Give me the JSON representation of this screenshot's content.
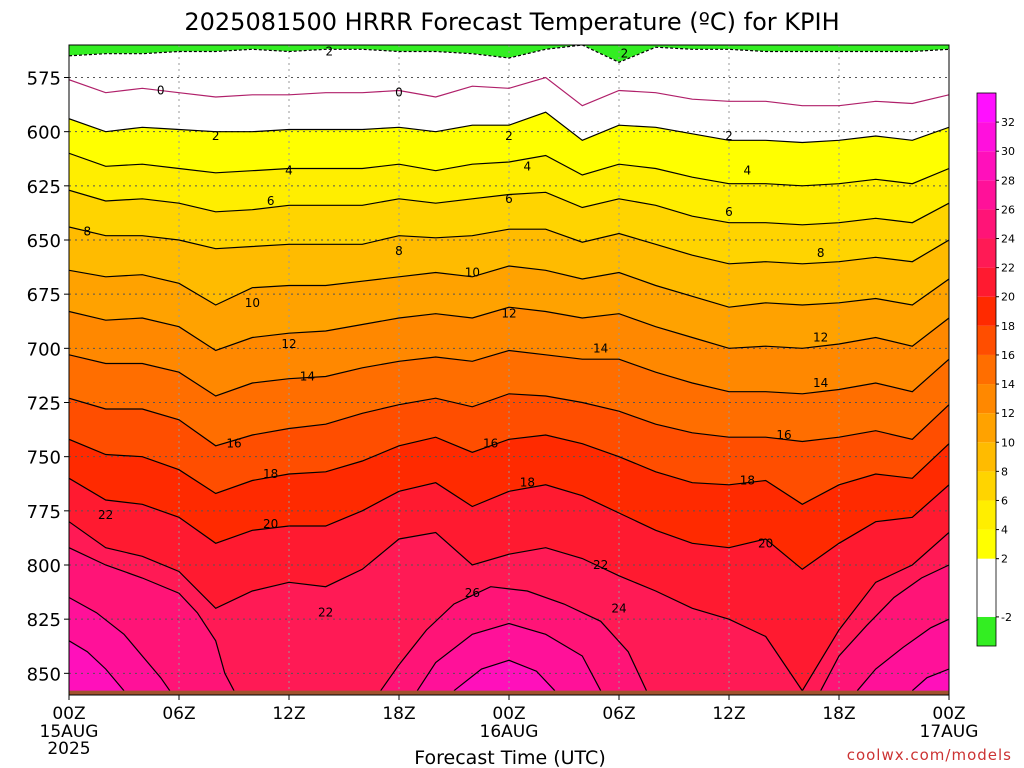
{
  "chart_data": {
    "type": "heatmap",
    "title": "2025081500 HRRR Forecast Temperature (ºC) for KPIH",
    "xlabel": "Forecast Time (UTC)",
    "ylabel": "",
    "credit": "coolwx.com/models",
    "x_hours": [
      0,
      48
    ],
    "x_ticks": [
      {
        "hour": 0,
        "label": "00Z",
        "date": "15AUG",
        "year": "2025"
      },
      {
        "hour": 6,
        "label": "06Z"
      },
      {
        "hour": 12,
        "label": "12Z"
      },
      {
        "hour": 18,
        "label": "18Z"
      },
      {
        "hour": 24,
        "label": "00Z",
        "date": "16AUG"
      },
      {
        "hour": 30,
        "label": "06Z"
      },
      {
        "hour": 36,
        "label": "12Z"
      },
      {
        "hour": 42,
        "label": "18Z"
      },
      {
        "hour": 48,
        "label": "00Z",
        "date": "17AUG"
      }
    ],
    "y_ticks": [
      575,
      600,
      625,
      650,
      675,
      700,
      725,
      750,
      775,
      800,
      825,
      850
    ],
    "y_range": [
      560,
      860
    ],
    "y_reversed": true,
    "surface_pressure_hpa": 858,
    "colorbar": {
      "ticks": [
        -2,
        2,
        4,
        6,
        8,
        10,
        12,
        14,
        16,
        18,
        20,
        22,
        24,
        26,
        28,
        30,
        32
      ],
      "bins": [
        {
          "lo": -4,
          "hi": -2,
          "color": "#33ee22"
        },
        {
          "lo": -2,
          "hi": 2,
          "color": "#ffffff"
        },
        {
          "lo": 2,
          "hi": 4,
          "color": "#ffff00"
        },
        {
          "lo": 4,
          "hi": 6,
          "color": "#ffee00"
        },
        {
          "lo": 6,
          "hi": 8,
          "color": "#ffd400"
        },
        {
          "lo": 8,
          "hi": 10,
          "color": "#ffbb00"
        },
        {
          "lo": 10,
          "hi": 12,
          "color": "#ffa200"
        },
        {
          "lo": 12,
          "hi": 14,
          "color": "#ff8800"
        },
        {
          "lo": 14,
          "hi": 16,
          "color": "#ff6e00"
        },
        {
          "lo": 16,
          "hi": 18,
          "color": "#ff4e00"
        },
        {
          "lo": 18,
          "hi": 20,
          "color": "#ff2a00"
        },
        {
          "lo": 20,
          "hi": 22,
          "color": "#ff1a30"
        },
        {
          "lo": 22,
          "hi": 24,
          "color": "#ff1a55"
        },
        {
          "lo": 24,
          "hi": 26,
          "color": "#ff1477"
        },
        {
          "lo": 26,
          "hi": 28,
          "color": "#ff1199"
        },
        {
          "lo": 28,
          "hi": 30,
          "color": "#ff10bb"
        },
        {
          "lo": 30,
          "hi": 32,
          "color": "#ff10dd"
        },
        {
          "lo": 32,
          "hi": 34,
          "color": "#ff10ff"
        }
      ]
    },
    "isotherms": [
      {
        "temp": -2,
        "style": "dashed",
        "p": [
          565,
          564,
          564,
          563,
          563,
          562,
          563,
          562,
          562,
          563,
          563,
          564,
          566,
          562,
          560,
          568,
          561,
          562,
          562,
          563,
          563,
          563,
          563,
          563,
          562
        ]
      },
      {
        "temp": 0,
        "style": "magenta",
        "p": [
          576,
          582,
          580,
          582,
          584,
          583,
          583,
          582,
          582,
          581,
          584,
          579,
          580,
          575,
          588,
          581,
          582,
          585,
          586,
          586,
          588,
          588,
          586,
          587,
          583
        ]
      },
      {
        "temp": 2,
        "style": "solid",
        "p": [
          594,
          600,
          598,
          599,
          600,
          600,
          599,
          599,
          599,
          598,
          600,
          597,
          597,
          591,
          604,
          597,
          598,
          601,
          604,
          604,
          605,
          604,
          602,
          604,
          598
        ]
      },
      {
        "temp": 4,
        "style": "solid",
        "p": [
          610,
          616,
          615,
          617,
          619,
          618,
          617,
          617,
          617,
          615,
          618,
          615,
          614,
          611,
          620,
          615,
          617,
          621,
          624,
          624,
          625,
          624,
          622,
          624,
          617
        ]
      },
      {
        "temp": 6,
        "style": "solid",
        "p": [
          627,
          632,
          631,
          633,
          637,
          636,
          634,
          634,
          634,
          631,
          633,
          631,
          629,
          628,
          635,
          631,
          634,
          639,
          642,
          642,
          643,
          642,
          640,
          642,
          633
        ]
      },
      {
        "temp": 8,
        "style": "solid",
        "p": [
          644,
          648,
          648,
          650,
          654,
          653,
          652,
          652,
          652,
          648,
          649,
          648,
          645,
          645,
          651,
          647,
          652,
          657,
          661,
          660,
          661,
          660,
          658,
          660,
          650
        ]
      },
      {
        "temp": 10,
        "style": "solid",
        "p": [
          664,
          667,
          666,
          670,
          680,
          672,
          671,
          671,
          669,
          667,
          665,
          667,
          662,
          664,
          668,
          665,
          671,
          676,
          681,
          679,
          680,
          679,
          677,
          680,
          668
        ]
      },
      {
        "temp": 12,
        "style": "solid",
        "p": [
          683,
          687,
          686,
          690,
          701,
          695,
          693,
          692,
          689,
          686,
          684,
          686,
          681,
          683,
          686,
          684,
          690,
          695,
          700,
          699,
          700,
          698,
          695,
          699,
          686
        ]
      },
      {
        "temp": 14,
        "style": "solid",
        "p": [
          703,
          707,
          707,
          711,
          722,
          716,
          714,
          713,
          709,
          706,
          704,
          706,
          701,
          703,
          705,
          705,
          711,
          716,
          720,
          720,
          721,
          719,
          716,
          720,
          705
        ]
      },
      {
        "temp": 16,
        "style": "solid",
        "p": [
          723,
          728,
          728,
          733,
          745,
          740,
          737,
          735,
          730,
          726,
          723,
          727,
          721,
          722,
          725,
          729,
          735,
          739,
          741,
          741,
          743,
          741,
          738,
          742,
          726
        ]
      },
      {
        "temp": 18,
        "style": "solid",
        "p": [
          742,
          749,
          750,
          756,
          767,
          761,
          758,
          757,
          752,
          745,
          741,
          748,
          742,
          740,
          744,
          750,
          757,
          762,
          763,
          761,
          772,
          763,
          758,
          760,
          744
        ]
      },
      {
        "temp": 20,
        "style": "solid",
        "p": [
          760,
          770,
          772,
          778,
          790,
          784,
          782,
          782,
          775,
          766,
          762,
          773,
          766,
          763,
          768,
          776,
          784,
          790,
          792,
          788,
          802,
          790,
          780,
          778,
          763
        ]
      },
      {
        "temp": 22,
        "style": "solid",
        "p": [
          780,
          792,
          796,
          803,
          820,
          812,
          808,
          810,
          802,
          788,
          785,
          800,
          795,
          792,
          797,
          805,
          812,
          820,
          825,
          833,
          858,
          830,
          808,
          800,
          785
        ]
      }
    ],
    "contour_labels": [
      {
        "value": 2,
        "hour": 14.2,
        "p": 563
      },
      {
        "value": 2,
        "hour": 30.3,
        "p": 564
      },
      {
        "value": 0,
        "hour": 5,
        "p": 581
      },
      {
        "value": 0,
        "hour": 18,
        "p": 582
      },
      {
        "value": 2,
        "hour": 8,
        "p": 602
      },
      {
        "value": 2,
        "hour": 24,
        "p": 602
      },
      {
        "value": 2,
        "hour": 36,
        "p": 602
      },
      {
        "value": 4,
        "hour": 12,
        "p": 618
      },
      {
        "value": 4,
        "hour": 25,
        "p": 616
      },
      {
        "value": 4,
        "hour": 37,
        "p": 618
      },
      {
        "value": 6,
        "hour": 11,
        "p": 632
      },
      {
        "value": 6,
        "hour": 24,
        "p": 631
      },
      {
        "value": 6,
        "hour": 36,
        "p": 637
      },
      {
        "value": 8,
        "hour": 1,
        "p": 646
      },
      {
        "value": 8,
        "hour": 18,
        "p": 655
      },
      {
        "value": 8,
        "hour": 41,
        "p": 656
      },
      {
        "value": 10,
        "hour": 10,
        "p": 679
      },
      {
        "value": 10,
        "hour": 22,
        "p": 665
      },
      {
        "value": 12,
        "hour": 12,
        "p": 698
      },
      {
        "value": 12,
        "hour": 24,
        "p": 684
      },
      {
        "value": 12,
        "hour": 41,
        "p": 695
      },
      {
        "value": 14,
        "hour": 13,
        "p": 713
      },
      {
        "value": 14,
        "hour": 29,
        "p": 700
      },
      {
        "value": 14,
        "hour": 41,
        "p": 716
      },
      {
        "value": 16,
        "hour": 9,
        "p": 744
      },
      {
        "value": 16,
        "hour": 23,
        "p": 744
      },
      {
        "value": 16,
        "hour": 39,
        "p": 740
      },
      {
        "value": 18,
        "hour": 11,
        "p": 758
      },
      {
        "value": 18,
        "hour": 25,
        "p": 762
      },
      {
        "value": 18,
        "hour": 37,
        "p": 761
      },
      {
        "value": 22,
        "hour": 2,
        "p": 777
      },
      {
        "value": 20,
        "hour": 11,
        "p": 781
      },
      {
        "value": 20,
        "hour": 38,
        "p": 790
      },
      {
        "value": 22,
        "hour": 29,
        "p": 800
      },
      {
        "value": 26,
        "hour": 22,
        "p": 813
      },
      {
        "value": 24,
        "hour": 30,
        "p": 820
      },
      {
        "value": 22,
        "hour": 14,
        "p": 822
      }
    ],
    "warm_contours": [
      {
        "temp": 24,
        "pts": [
          [
            0,
            792
          ],
          [
            2,
            800
          ],
          [
            4,
            806
          ],
          [
            6,
            813
          ],
          [
            7,
            822
          ],
          [
            8,
            835
          ],
          [
            8.5,
            850
          ],
          [
            9,
            858
          ]
        ]
      },
      {
        "temp": 26,
        "pts": [
          [
            0,
            815
          ],
          [
            1.5,
            822
          ],
          [
            3,
            832
          ],
          [
            4,
            842
          ],
          [
            5,
            852
          ],
          [
            5.5,
            858
          ]
        ]
      },
      {
        "temp": 28,
        "pts": [
          [
            0,
            835
          ],
          [
            1,
            840
          ],
          [
            2,
            848
          ],
          [
            3,
            858
          ]
        ]
      },
      {
        "temp": 24,
        "pts": [
          [
            17,
            858
          ],
          [
            18,
            846
          ],
          [
            19.5,
            830
          ],
          [
            21,
            818
          ],
          [
            23,
            810
          ],
          [
            25,
            812
          ],
          [
            27,
            818
          ],
          [
            29,
            826
          ],
          [
            30.5,
            840
          ],
          [
            31.5,
            858
          ]
        ]
      },
      {
        "temp": 26,
        "pts": [
          [
            19,
            858
          ],
          [
            20,
            845
          ],
          [
            22,
            832
          ],
          [
            24,
            827
          ],
          [
            26,
            832
          ],
          [
            28,
            842
          ],
          [
            29,
            858
          ]
        ]
      },
      {
        "temp": 28,
        "pts": [
          [
            21,
            858
          ],
          [
            22.5,
            848
          ],
          [
            24,
            844
          ],
          [
            25.5,
            849
          ],
          [
            26.5,
            858
          ]
        ]
      },
      {
        "temp": 24,
        "pts": [
          [
            41,
            858
          ],
          [
            42,
            842
          ],
          [
            43.5,
            828
          ],
          [
            45,
            815
          ],
          [
            46.5,
            806
          ],
          [
            48,
            800
          ]
        ]
      },
      {
        "temp": 26,
        "pts": [
          [
            43,
            858
          ],
          [
            44,
            848
          ],
          [
            45.5,
            838
          ],
          [
            47,
            829
          ],
          [
            48,
            825
          ]
        ]
      },
      {
        "temp": 28,
        "pts": [
          [
            46,
            858
          ],
          [
            46.8,
            852
          ],
          [
            48,
            848
          ]
        ]
      }
    ]
  }
}
